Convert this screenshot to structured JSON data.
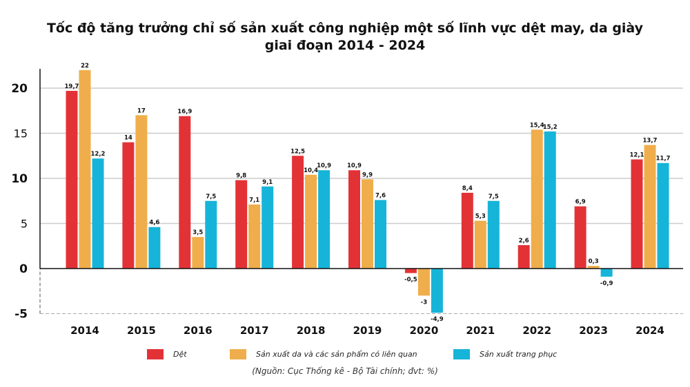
{
  "chart_data": {
    "type": "bar",
    "title_line1": "Tốc độ tăng trưởng chỉ số sản xuất công nghiệp một số lĩnh vực dệt may, da giày",
    "title_line2": "giai đoạn 2014 - 2024",
    "categories": [
      "2014",
      "2015",
      "2016",
      "2017",
      "2018",
      "2019",
      "2020",
      "2021",
      "2022",
      "2023",
      "2024"
    ],
    "series": [
      {
        "name": "Dệt",
        "color": "#e33236",
        "values": [
          19.7,
          14,
          16.9,
          9.8,
          12.5,
          10.9,
          -0.5,
          8.4,
          2.6,
          6.9,
          12.1
        ],
        "labels": [
          "19,7",
          "14",
          "16,9",
          "9,8",
          "12,5",
          "10,9",
          "-0,5",
          "8,4",
          "2,6",
          "6,9",
          "12,1"
        ]
      },
      {
        "name": "Sản xuất da và các sản phẩm có liên quan",
        "color": "#efae4b",
        "values": [
          22,
          17,
          3.5,
          7.1,
          10.4,
          9.9,
          -3,
          5.3,
          15.4,
          0.3,
          13.7
        ],
        "labels": [
          "22",
          "17",
          "3,5",
          "7,1",
          "10,4",
          "9,9",
          "-3",
          "5,3",
          "15,4",
          "0,3",
          "13,7"
        ]
      },
      {
        "name": "Sản xuất trang phục",
        "color": "#16b4d8",
        "values": [
          12.2,
          4.6,
          7.5,
          9.1,
          10.9,
          7.6,
          -4.9,
          7.5,
          15.2,
          -0.9,
          11.7
        ],
        "labels": [
          "12,2",
          "4,6",
          "7,5",
          "9,1",
          "10,9",
          "7,6",
          "-4,9",
          "7,5",
          "15,2",
          "-0,9",
          "11,7"
        ]
      }
    ],
    "yticks": [
      -5,
      0,
      5,
      10,
      15,
      20
    ],
    "ytick_labels": [
      "-5",
      "0",
      "5",
      "10",
      "15",
      "20"
    ],
    "ylim": [
      -5,
      22.5
    ],
    "grid": true,
    "legend": "bottom"
  },
  "source": "(Nguồn: Cục Thống kê - Bộ Tài chính; đvt: %)"
}
